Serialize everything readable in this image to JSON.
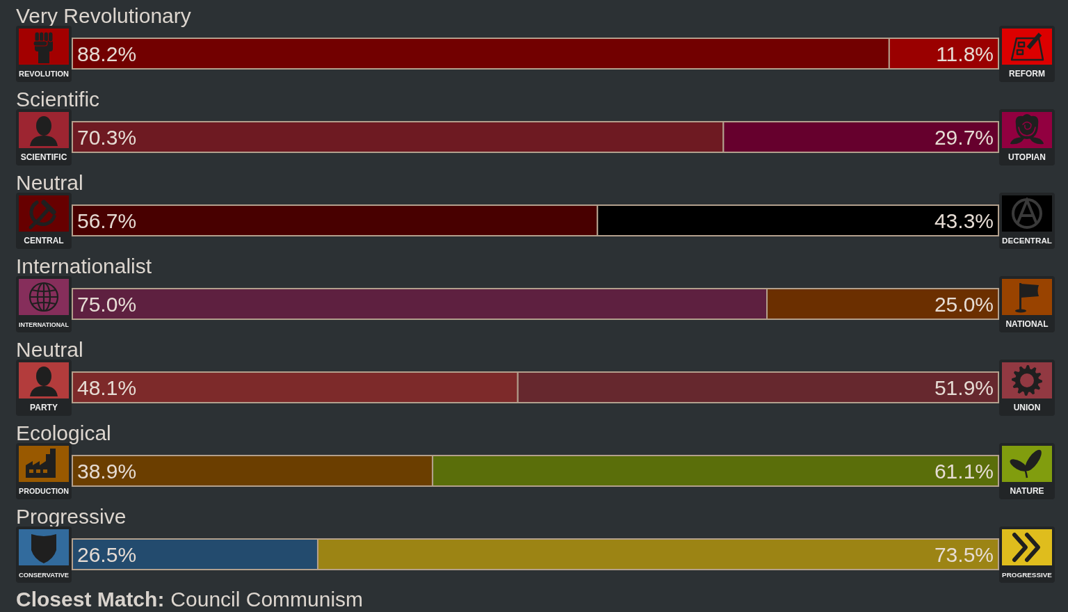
{
  "chart_data": [
    {
      "type": "bar",
      "orientation": "horizontal",
      "stacked": true,
      "title": "Very Revolutionary",
      "categories": [
        null
      ],
      "xlim": [
        0,
        100
      ],
      "series": [
        {
          "name": "REVOLUTION",
          "color": "#720000",
          "values": [
            88.2
          ],
          "value_labels": [
            "88.2%"
          ]
        },
        {
          "name": "REFORM",
          "color": "#9a0000",
          "values": [
            11.8
          ],
          "value_labels": [
            "11.8%"
          ]
        }
      ]
    },
    {
      "type": "bar",
      "orientation": "horizontal",
      "stacked": true,
      "title": "Scientific",
      "categories": [
        null
      ],
      "xlim": [
        0,
        100
      ],
      "series": [
        {
          "name": "SCIENTIFIC",
          "color": "#6e1a22",
          "values": [
            70.3
          ],
          "value_labels": [
            "70.3%"
          ]
        },
        {
          "name": "UTOPIAN",
          "color": "#66002d",
          "values": [
            29.7
          ],
          "value_labels": [
            "29.7%"
          ]
        }
      ]
    },
    {
      "type": "bar",
      "orientation": "horizontal",
      "stacked": true,
      "title": "Neutral",
      "categories": [
        null
      ],
      "xlim": [
        0,
        100
      ],
      "series": [
        {
          "name": "CENTRAL",
          "color": "#480000",
          "values": [
            56.7
          ],
          "value_labels": [
            "56.7%"
          ]
        },
        {
          "name": "DECENTRAL",
          "color": "#000000",
          "values": [
            43.3
          ],
          "value_labels": [
            "43.3%"
          ]
        }
      ]
    },
    {
      "type": "bar",
      "orientation": "horizontal",
      "stacked": true,
      "title": "Internationalist",
      "categories": [
        null
      ],
      "xlim": [
        0,
        100
      ],
      "series": [
        {
          "name": "INTERNATIONAL",
          "color": "#5e2040",
          "values": [
            75.0
          ],
          "value_labels": [
            "75.0%"
          ]
        },
        {
          "name": "NATIONAL",
          "color": "#6b2f00",
          "values": [
            25.0
          ],
          "value_labels": [
            "25.0%"
          ]
        }
      ]
    },
    {
      "type": "bar",
      "orientation": "horizontal",
      "stacked": true,
      "title": "Neutral",
      "categories": [
        null
      ],
      "xlim": [
        0,
        100
      ],
      "series": [
        {
          "name": "PARTY",
          "color": "#7d2a2a",
          "values": [
            48.1
          ],
          "value_labels": [
            "48.1%"
          ]
        },
        {
          "name": "UNION",
          "color": "#66282e",
          "values": [
            51.9
          ],
          "value_labels": [
            "51.9%"
          ]
        }
      ]
    },
    {
      "type": "bar",
      "orientation": "horizontal",
      "stacked": true,
      "title": "Ecological",
      "categories": [
        null
      ],
      "xlim": [
        0,
        100
      ],
      "series": [
        {
          "name": "PRODUCTION",
          "color": "#6b3e00",
          "values": [
            38.9
          ],
          "value_labels": [
            "38.9%"
          ]
        },
        {
          "name": "NATURE",
          "color": "#5a6e0a",
          "values": [
            61.1
          ],
          "value_labels": [
            "61.1%"
          ]
        }
      ]
    },
    {
      "type": "bar",
      "orientation": "horizontal",
      "stacked": true,
      "title": "Progressive",
      "categories": [
        null
      ],
      "xlim": [
        0,
        100
      ],
      "series": [
        {
          "name": "CONSERVATIVE",
          "color": "#234b6e",
          "values": [
            26.5
          ],
          "value_labels": [
            "26.5%"
          ]
        },
        {
          "name": "PROGRESSIVE",
          "color": "#9c8414",
          "values": [
            73.5
          ],
          "value_labels": [
            "73.5%"
          ]
        }
      ],
      "annotations": [
        "Closest Match:",
        "Council Communism"
      ]
    }
  ]
}
